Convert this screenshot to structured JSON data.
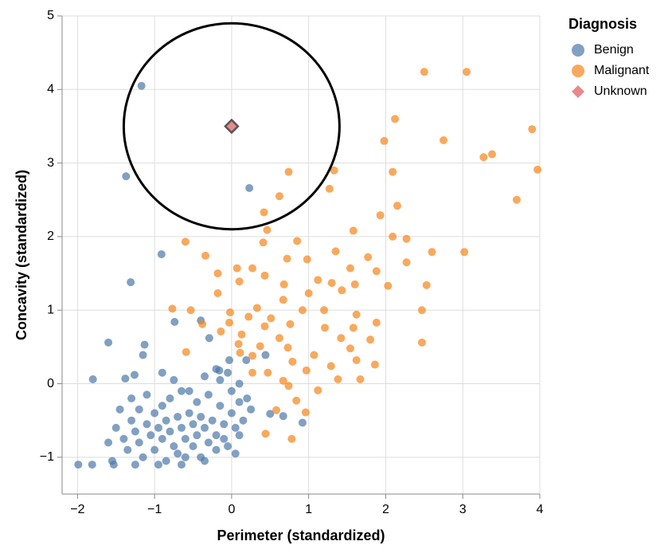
{
  "chart_data": {
    "type": "scatter",
    "x_label": "Perimeter (standardized)",
    "y_label": "Concavity (standardized)",
    "legend_title": "Diagnosis",
    "legend": "right",
    "grid": true,
    "xlim": [
      -2.2,
      4
    ],
    "ylim": [
      -1.5,
      5
    ],
    "xticks": [
      {
        "value": -2,
        "label": "−2"
      },
      {
        "value": -1,
        "label": "−1"
      },
      0,
      1,
      2,
      3,
      4
    ],
    "yticks": [
      {
        "value": -1,
        "label": "−1"
      },
      0,
      1,
      2,
      3,
      4,
      5
    ],
    "highlight_radius": 1.4,
    "series": [
      {
        "name": "Benign",
        "color": "#4c78a8",
        "x": [
          -1.17,
          -1.37,
          0.23,
          -0.91,
          -1.31,
          -0.74,
          -0.4,
          -1.6,
          -1.13,
          -1.15,
          -1.8,
          -1.38,
          -1.26,
          -1.99,
          -1.81,
          -1.53,
          -0.29,
          0.44,
          0.19,
          -0.03,
          -0.16,
          0.92,
          0.67,
          0.5,
          -1.5,
          -1.4,
          -1.35,
          -1.3,
          -1.25,
          -1.2,
          -1.2,
          -1.15,
          -1.1,
          -1.05,
          -1.0,
          -1.0,
          -0.95,
          -0.9,
          -0.9,
          -0.85,
          -0.85,
          -0.8,
          -0.8,
          -0.75,
          -0.7,
          -0.7,
          -0.65,
          -0.65,
          -0.6,
          -0.6,
          -0.55,
          -0.5,
          -0.5,
          -0.45,
          -0.45,
          -0.4,
          -0.4,
          -0.35,
          -0.3,
          -0.3,
          -0.25,
          -0.2,
          -0.2,
          -0.15,
          -0.1,
          -0.1,
          0.0,
          0.0,
          0.05,
          0.1,
          0.15,
          0.2,
          0.25,
          -0.55,
          -0.75,
          -0.9,
          -1.1,
          -1.3,
          -1.45,
          -0.35,
          -0.15,
          -0.05,
          -1.55,
          -1.25,
          -0.95,
          -0.65,
          -0.35,
          -0.05,
          0.1,
          -1.6,
          -0.2,
          0.1,
          0.05
        ],
        "values": [
          4.05,
          2.82,
          2.66,
          1.76,
          1.38,
          0.84,
          0.86,
          0.56,
          0.53,
          0.39,
          0.06,
          0.07,
          0.12,
          -1.1,
          -1.1,
          -1.1,
          0.62,
          0.39,
          0.32,
          0.32,
          0.18,
          -0.53,
          -0.44,
          -0.41,
          -0.6,
          -0.75,
          -0.9,
          -0.5,
          -0.65,
          -0.8,
          -0.35,
          -1.0,
          -0.55,
          -0.7,
          -0.9,
          -0.4,
          -0.6,
          -0.75,
          -0.3,
          -1.05,
          -0.5,
          -0.65,
          -0.2,
          -0.85,
          -0.45,
          -0.95,
          -0.6,
          -0.1,
          -0.75,
          -1.0,
          -0.4,
          -0.55,
          -0.85,
          -0.25,
          -0.7,
          -1.0,
          -0.45,
          -0.6,
          -0.8,
          -0.15,
          -0.5,
          -0.7,
          -0.9,
          -0.3,
          -0.55,
          -0.75,
          -0.4,
          -0.1,
          -0.6,
          -0.25,
          -0.5,
          -0.2,
          -0.35,
          -0.1,
          0.05,
          0.15,
          -0.15,
          -0.2,
          -0.35,
          0.1,
          0.05,
          0.15,
          -1.05,
          -1.1,
          -1.1,
          -1.1,
          -1.05,
          -0.85,
          -0.7,
          -0.8,
          0.2,
          0.0,
          -0.95
        ]
      },
      {
        "name": "Malignant",
        "color": "#f58518",
        "x": [
          2.5,
          3.05,
          2.12,
          3.9,
          1.98,
          2.75,
          3.38,
          3.27,
          3.97,
          1.33,
          0.74,
          2.09,
          1.27,
          0.62,
          3.7,
          2.15,
          0.42,
          1.93,
          1.58,
          0.46,
          2.09,
          2.27,
          -0.6,
          0.85,
          0.41,
          2.6,
          3.02,
          1.35,
          -0.34,
          1.77,
          0.72,
          0.98,
          0.07,
          0.27,
          1.54,
          2.27,
          -0.18,
          0.43,
          1.88,
          1.12,
          0.1,
          0.68,
          1.3,
          2.03,
          2.53,
          1.6,
          -0.18,
          1.0,
          1.43,
          0.67,
          0.33,
          -0.77,
          -0.53,
          -0.02,
          0.92,
          1.2,
          2.47,
          0.22,
          0.51,
          1.62,
          1.88,
          -0.03,
          0.76,
          -0.38,
          1.21,
          1.58,
          0.43,
          -0.14,
          0.13,
          0.62,
          1.42,
          1.8,
          2.47,
          0.09,
          0.37,
          0.73,
          1.54,
          -0.59,
          1.07,
          0.27,
          0.79,
          1.29,
          1.62,
          1.86,
          0.47,
          0.97,
          0.67,
          1.38,
          1.67,
          0.74,
          1.12,
          0.84,
          0.58,
          0.96,
          0.44,
          0.78,
          0.27,
          0.11
        ],
        "values": [
          4.24,
          4.24,
          3.6,
          3.46,
          3.3,
          3.31,
          3.12,
          3.08,
          2.91,
          2.9,
          2.88,
          2.88,
          2.65,
          2.55,
          2.5,
          2.42,
          2.33,
          2.29,
          2.08,
          2.09,
          2.0,
          1.97,
          1.93,
          1.94,
          1.92,
          1.79,
          1.79,
          1.8,
          1.74,
          1.72,
          1.7,
          1.69,
          1.57,
          1.57,
          1.57,
          1.65,
          1.5,
          1.47,
          1.53,
          1.41,
          1.39,
          1.35,
          1.37,
          1.33,
          1.34,
          1.35,
          1.23,
          1.23,
          1.27,
          1.14,
          1.03,
          1.02,
          1.0,
          0.97,
          1.0,
          1.0,
          1.0,
          0.91,
          0.89,
          0.94,
          0.83,
          0.83,
          0.81,
          0.81,
          0.76,
          0.76,
          0.78,
          0.71,
          0.67,
          0.62,
          0.62,
          0.6,
          0.56,
          0.54,
          0.51,
          0.49,
          0.48,
          0.43,
          0.39,
          0.38,
          0.3,
          0.24,
          0.32,
          0.26,
          0.15,
          0.18,
          0.04,
          0.06,
          0.06,
          -0.03,
          -0.09,
          -0.23,
          -0.36,
          -0.39,
          -0.68,
          -0.75,
          0.15,
          0.42
        ]
      },
      {
        "name": "Unknown",
        "color": "#e8898a",
        "x": [
          0
        ],
        "values": [
          3.5
        ]
      }
    ]
  }
}
